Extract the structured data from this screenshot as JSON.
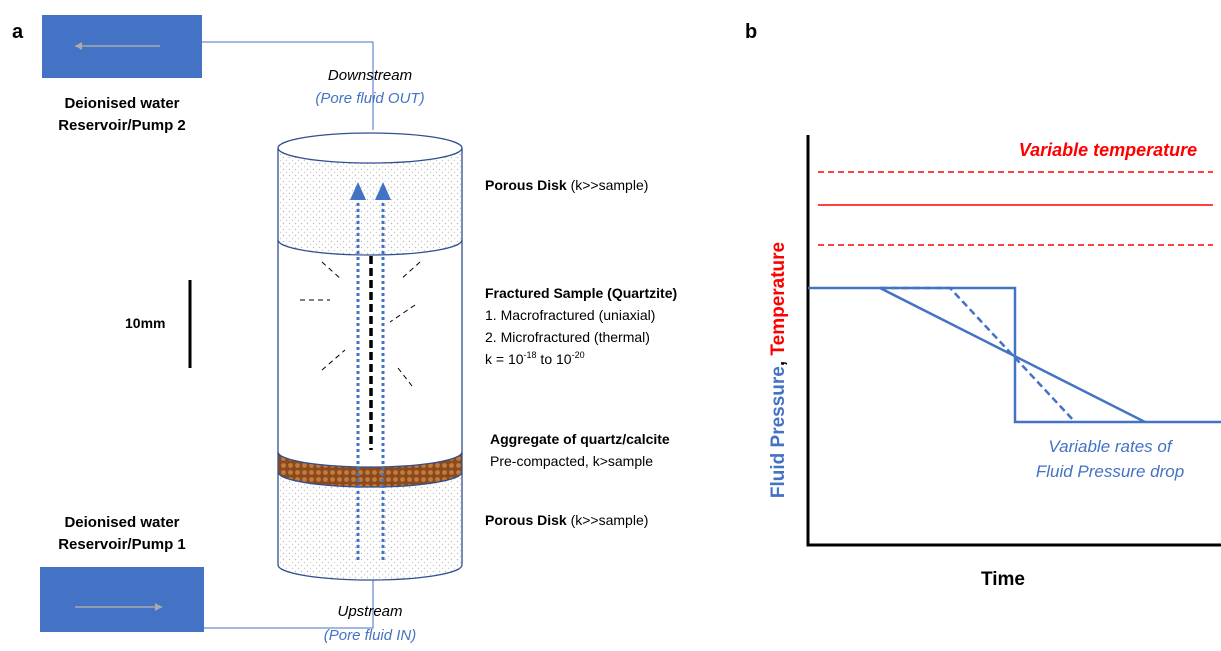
{
  "panel_a": {
    "label": "a",
    "pump_2": {
      "line1": "Deionised water",
      "line2": "Reservoir/Pump 2"
    },
    "pump_1": {
      "line1": "Deionised water",
      "line2": "Reservoir/Pump 1"
    },
    "downstream": {
      "title": "Downstream",
      "note": "(Pore fluid OUT)"
    },
    "upstream": {
      "title": "Upstream",
      "note": "(Pore fluid IN)"
    },
    "scale_bar": "10mm",
    "porous_disk_top": {
      "name": "Porous Disk",
      "note": " (k>>sample)"
    },
    "sample": {
      "title": "Fractured Sample (Quartzite)",
      "line1": "1. Macrofractured (uniaxial)",
      "line2": "2. Microfractured (thermal)",
      "k_prefix": "k = 10",
      "k_exp1": "-18",
      "k_mid": " to 10",
      "k_exp2": "-20"
    },
    "aggregate": {
      "title": "Aggregate of quartz/calcite",
      "note": "Pre-compacted, k>sample"
    },
    "porous_disk_bottom": {
      "name": "Porous Disk",
      "note": " (k>>sample)"
    }
  },
  "panel_b": {
    "label": "b",
    "y_label_pressure": "Fluid Pressure",
    "y_label_sep": ", ",
    "y_label_temperature": "Temperature",
    "x_label": "Time",
    "temperature_note": "Variable temperature",
    "pressure_note_line1": "Variable rates of",
    "pressure_note_line2": "Fluid Pressure drop"
  }
}
